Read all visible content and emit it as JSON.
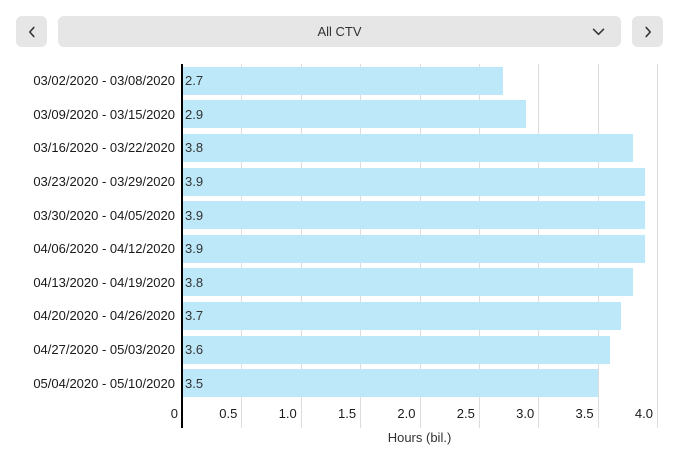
{
  "toolbar": {
    "prev_button": {
      "icon": "chevron-left-icon"
    },
    "next_button": {
      "icon": "chevron-right-icon"
    },
    "dropdown": {
      "value": "All CTV",
      "icon": "chevron-down-icon"
    }
  },
  "colors": {
    "bar_fill": "#bce8f9",
    "control_bg": "#e6e6e6",
    "gridline": "#dcdcdc",
    "axis": "#000000",
    "text": "#333333"
  },
  "chart_data": {
    "type": "bar",
    "orientation": "horizontal",
    "title": "",
    "xlabel": "Hours (bil.)",
    "categories": [
      "03/02/2020 - 03/08/2020",
      "03/09/2020 - 03/15/2020",
      "03/16/2020 - 03/22/2020",
      "03/23/2020 - 03/29/2020",
      "03/30/2020 - 04/05/2020",
      "04/06/2020 - 04/12/2020",
      "04/13/2020 - 04/19/2020",
      "04/20/2020 - 04/26/2020",
      "04/27/2020 - 05/03/2020",
      "05/04/2020 - 05/10/2020"
    ],
    "values": [
      2.7,
      2.9,
      3.8,
      3.9,
      3.9,
      3.9,
      3.8,
      3.7,
      3.6,
      3.5
    ],
    "value_labels": [
      "2.7",
      "2.9",
      "3.8",
      "3.9",
      "3.9",
      "3.9",
      "3.8",
      "3.7",
      "3.6",
      "3.5"
    ],
    "xlim": [
      0,
      4.0
    ],
    "xtick_values": [
      0,
      0.5,
      1.0,
      1.5,
      2.0,
      2.5,
      3.0,
      3.5,
      4.0
    ],
    "xtick_labels": [
      "0",
      "0.5",
      "1.0",
      "1.5",
      "2.0",
      "2.5",
      "3.0",
      "3.5",
      "4.0"
    ],
    "grid": true,
    "legend": false
  }
}
